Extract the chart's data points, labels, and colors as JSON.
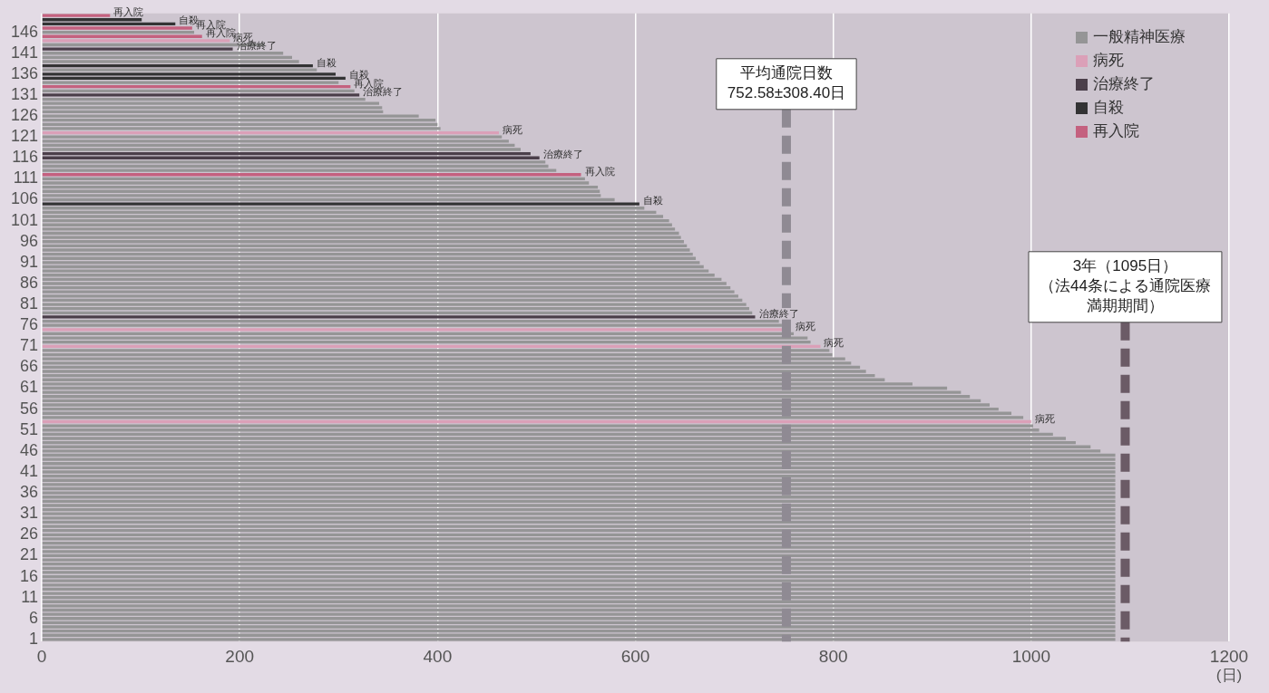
{
  "chart_data": {
    "type": "bar",
    "orientation": "horizontal",
    "stacked": true,
    "xlabel": "(日)",
    "categories": [
      null,
      null,
      null,
      null,
      "146",
      null,
      null,
      null,
      null,
      "141",
      null,
      null,
      null,
      null,
      "136",
      null,
      null,
      null,
      null,
      "131",
      null,
      null,
      null,
      null,
      "126",
      null,
      null,
      null,
      null,
      "121",
      null,
      null,
      null,
      null,
      "116",
      null,
      null,
      null,
      null,
      "111",
      null,
      null,
      null,
      null,
      "106",
      null,
      null,
      null,
      null,
      "101",
      null,
      null,
      null,
      null,
      "96",
      null,
      null,
      null,
      null,
      "91",
      null,
      null,
      null,
      null,
      "86",
      null,
      null,
      null,
      null,
      "81",
      null,
      null,
      null,
      null,
      "76",
      null,
      null,
      null,
      null,
      "71",
      null,
      null,
      null,
      null,
      "66",
      null,
      null,
      null,
      null,
      "61",
      null,
      null,
      null,
      null,
      "56",
      null,
      null,
      null,
      null,
      "51",
      null,
      null,
      null,
      null,
      "46",
      null,
      null,
      null,
      null,
      "41",
      null,
      null,
      null,
      null,
      "36",
      null,
      null,
      null,
      null,
      "31",
      null,
      null,
      null,
      null,
      "26",
      null,
      null,
      null,
      null,
      "21",
      null,
      null,
      null,
      null,
      "16",
      null,
      null,
      null,
      null,
      "11",
      null,
      null,
      null,
      null,
      "6",
      null,
      null,
      null,
      null,
      "1"
    ],
    "series": [
      {
        "name": "一般精神医療",
        "color": "#959596",
        "values": [
          null,
          null,
          null,
          null,
          154,
          null,
          null,
          225,
          null,
          244,
          253,
          260,
          null,
          278,
          null,
          null,
          300,
          null,
          316,
          null,
          327,
          341,
          344,
          345,
          381,
          398,
          400,
          403,
          null,
          465,
          472,
          478,
          484,
          null,
          null,
          509,
          512,
          520,
          null,
          549,
          553,
          562,
          564,
          565,
          579,
          null,
          609,
          621,
          628,
          634,
          637,
          640,
          644,
          646,
          649,
          652,
          655,
          658,
          661,
          665,
          669,
          674,
          680,
          687,
          692,
          696,
          700,
          704,
          708,
          712,
          715,
          718,
          null,
          745,
          748,
          null,
          760,
          774,
          777,
          null,
          796,
          799,
          812,
          818,
          827,
          833,
          842,
          852,
          880,
          915,
          929,
          938,
          949,
          958,
          967,
          980,
          992,
          null,
          1002,
          1008,
          1022,
          1035,
          1045,
          1060,
          1070,
          1085,
          1085,
          1085,
          1085,
          1085,
          1085,
          1085,
          1085,
          1085,
          1085,
          1085,
          1085,
          1085,
          1085,
          1085,
          1085,
          1085,
          1085,
          1085,
          1085,
          1085,
          1085,
          1085,
          1085,
          1085,
          1085,
          1085,
          1085,
          1085,
          1085,
          1085,
          1085,
          1085,
          1085,
          1085,
          1085,
          1085,
          1085,
          1085,
          1085,
          1085,
          1085,
          1085,
          1085,
          1085
        ]
      },
      {
        "name": "病死",
        "color": "#dba0b8",
        "values": [
          null,
          null,
          null,
          null,
          null,
          null,
          190,
          null,
          null,
          null,
          null,
          null,
          null,
          null,
          null,
          null,
          null,
          null,
          null,
          null,
          null,
          null,
          null,
          null,
          null,
          null,
          null,
          null,
          462,
          null,
          null,
          null,
          null,
          null,
          null,
          null,
          null,
          null,
          null,
          null,
          null,
          null,
          null,
          null,
          null,
          null,
          null,
          null,
          null,
          null,
          null,
          null,
          null,
          null,
          null,
          null,
          null,
          null,
          null,
          null,
          null,
          null,
          null,
          null,
          null,
          null,
          null,
          null,
          null,
          null,
          null,
          null,
          null,
          null,
          null,
          750,
          null,
          null,
          null,
          787,
          null,
          null,
          null,
          null,
          null,
          null,
          null,
          null,
          null,
          null,
          null,
          null,
          null,
          null,
          null,
          null,
          null,
          1000,
          null,
          null,
          null,
          null,
          null,
          null,
          null,
          null,
          null,
          null,
          null,
          null,
          null,
          null,
          null,
          null,
          null,
          null,
          null,
          null,
          null,
          null,
          null,
          null,
          null,
          null,
          null,
          null,
          null,
          null,
          null,
          null,
          null,
          null,
          null,
          null,
          null,
          null,
          null,
          null,
          null,
          null,
          null,
          null,
          null,
          null,
          null,
          null,
          null,
          null,
          null,
          null
        ],
        "value_labels": [
          null,
          null,
          null,
          null,
          null,
          null,
          "病死",
          null,
          null,
          null,
          null,
          null,
          null,
          null,
          null,
          null,
          null,
          null,
          null,
          null,
          null,
          null,
          null,
          null,
          null,
          null,
          null,
          null,
          "病死",
          null,
          null,
          null,
          null,
          null,
          null,
          null,
          null,
          null,
          null,
          null,
          null,
          null,
          null,
          null,
          null,
          null,
          null,
          null,
          null,
          null,
          null,
          null,
          null,
          null,
          null,
          null,
          null,
          null,
          null,
          null,
          null,
          null,
          null,
          null,
          null,
          null,
          null,
          null,
          null,
          null,
          null,
          null,
          null,
          null,
          null,
          "病死",
          null,
          null,
          null,
          "病死",
          null,
          null,
          null,
          null,
          null,
          null,
          null,
          null,
          null,
          null,
          null,
          null,
          null,
          null,
          null,
          null,
          null,
          "病死",
          null,
          null,
          null,
          null,
          null,
          null,
          null,
          null,
          null,
          null,
          null,
          null,
          null,
          null,
          null,
          null,
          null,
          null,
          null,
          null,
          null,
          null,
          null,
          null,
          null,
          null,
          null,
          null,
          null,
          null,
          null,
          null,
          null,
          null,
          null,
          null,
          null,
          null,
          null,
          null,
          null,
          null,
          null,
          null,
          null,
          null,
          null,
          null,
          null,
          null,
          null,
          null
        ]
      },
      {
        "name": "治療終了",
        "color": "#4b3f4a",
        "values": [
          null,
          null,
          null,
          null,
          null,
          null,
          null,
          null,
          193,
          null,
          null,
          null,
          null,
          null,
          null,
          null,
          null,
          null,
          null,
          321,
          null,
          null,
          null,
          null,
          null,
          null,
          null,
          null,
          null,
          null,
          null,
          null,
          null,
          494,
          503,
          null,
          null,
          null,
          null,
          null,
          null,
          null,
          null,
          null,
          null,
          null,
          null,
          null,
          null,
          null,
          null,
          null,
          null,
          null,
          null,
          null,
          null,
          null,
          null,
          null,
          null,
          null,
          null,
          null,
          null,
          null,
          null,
          null,
          null,
          null,
          null,
          null,
          721,
          null,
          null,
          null,
          null,
          null,
          null,
          null,
          null,
          null,
          null,
          null,
          null,
          null,
          null,
          null,
          null,
          null,
          null,
          null,
          null,
          null,
          null,
          null,
          null,
          null,
          null,
          null,
          null,
          null,
          null,
          null,
          null,
          null,
          null,
          null,
          null,
          null,
          null,
          null,
          null,
          null,
          null,
          null,
          null,
          null,
          null,
          null,
          null,
          null,
          null,
          null,
          null,
          null,
          null,
          null,
          null,
          null,
          null,
          null,
          null,
          null,
          null,
          null,
          null,
          null,
          null,
          null,
          null,
          null,
          null,
          null,
          null,
          null,
          null,
          null,
          null,
          null
        ],
        "value_labels": [
          null,
          null,
          null,
          null,
          null,
          null,
          null,
          null,
          "治療終了",
          null,
          null,
          null,
          null,
          null,
          null,
          null,
          null,
          null,
          null,
          "治療終了",
          null,
          null,
          null,
          null,
          null,
          null,
          null,
          null,
          null,
          null,
          null,
          null,
          null,
          null,
          "治療終了",
          null,
          null,
          null,
          null,
          null,
          null,
          null,
          null,
          null,
          null,
          null,
          null,
          null,
          null,
          null,
          null,
          null,
          null,
          null,
          null,
          null,
          null,
          null,
          null,
          null,
          null,
          null,
          null,
          null,
          null,
          null,
          null,
          null,
          null,
          null,
          null,
          null,
          "治療終了",
          null,
          null,
          null,
          null,
          null,
          null,
          null,
          null,
          null,
          null,
          null,
          null,
          null,
          null,
          null,
          null,
          null,
          null,
          null,
          null,
          null,
          null,
          null,
          null,
          null,
          null,
          null,
          null,
          null,
          null,
          null,
          null,
          null,
          null,
          null,
          null,
          null,
          null,
          null,
          null,
          null,
          null,
          null,
          null,
          null,
          null,
          null,
          null,
          null,
          null,
          null,
          null,
          null,
          null,
          null,
          null,
          null,
          null,
          null,
          null,
          null,
          null,
          null,
          null,
          null,
          null,
          null,
          null,
          null,
          null,
          null,
          null,
          null,
          null,
          null,
          null,
          null
        ]
      },
      {
        "name": "自殺",
        "color": "#333334",
        "values": [
          null,
          101,
          135,
          null,
          null,
          null,
          null,
          null,
          null,
          null,
          null,
          null,
          274,
          null,
          297,
          307,
          null,
          null,
          null,
          null,
          null,
          null,
          null,
          null,
          null,
          null,
          null,
          null,
          null,
          null,
          null,
          null,
          null,
          null,
          null,
          null,
          null,
          null,
          null,
          null,
          null,
          null,
          null,
          null,
          null,
          604,
          null,
          null,
          null,
          null,
          null,
          null,
          null,
          null,
          null,
          null,
          null,
          null,
          null,
          null,
          null,
          null,
          null,
          null,
          null,
          null,
          null,
          null,
          null,
          null,
          null,
          null,
          null,
          null,
          null,
          null,
          null,
          null,
          null,
          null,
          null,
          null,
          null,
          null,
          null,
          null,
          null,
          null,
          null,
          null,
          null,
          null,
          null,
          null,
          null,
          null,
          null,
          null,
          null,
          null,
          null,
          null,
          null,
          null,
          null,
          null,
          null,
          null,
          null,
          null,
          null,
          null,
          null,
          null,
          null,
          null,
          null,
          null,
          null,
          null,
          null,
          null,
          null,
          null,
          null,
          null,
          null,
          null,
          null,
          null,
          null,
          null,
          null,
          null,
          null,
          null,
          null,
          null,
          null,
          null,
          null,
          null,
          null,
          null,
          null,
          null,
          null,
          null,
          null,
          null
        ],
        "value_labels": [
          null,
          null,
          "自殺",
          null,
          null,
          null,
          null,
          null,
          null,
          null,
          null,
          null,
          "自殺",
          null,
          null,
          "自殺",
          null,
          null,
          null,
          null,
          null,
          null,
          null,
          null,
          null,
          null,
          null,
          null,
          null,
          null,
          null,
          null,
          null,
          null,
          null,
          null,
          null,
          null,
          null,
          null,
          null,
          null,
          null,
          null,
          null,
          "自殺",
          null,
          null,
          null,
          null,
          null,
          null,
          null,
          null,
          null,
          null,
          null,
          null,
          null,
          null,
          null,
          null,
          null,
          null,
          null,
          null,
          null,
          null,
          null,
          null,
          null,
          null,
          null,
          null,
          null,
          null,
          null,
          null,
          null,
          null,
          null,
          null,
          null,
          null,
          null,
          null,
          null,
          null,
          null,
          null,
          null,
          null,
          null,
          null,
          null,
          null,
          null,
          null,
          null,
          null,
          null,
          null,
          null,
          null,
          null,
          null,
          null,
          null,
          null,
          null,
          null,
          null,
          null,
          null,
          null,
          null,
          null,
          null,
          null,
          null,
          null,
          null,
          null,
          null,
          null,
          null,
          null,
          null,
          null,
          null,
          null,
          null,
          null,
          null,
          null,
          null,
          null,
          null,
          null,
          null,
          null,
          null,
          null,
          null,
          null,
          null,
          null,
          null,
          null,
          null
        ]
      },
      {
        "name": "再入院",
        "color": "#c4617f",
        "values": [
          69,
          null,
          null,
          152,
          null,
          162,
          null,
          null,
          null,
          null,
          null,
          null,
          null,
          null,
          null,
          null,
          null,
          312,
          null,
          null,
          null,
          null,
          null,
          null,
          null,
          null,
          null,
          null,
          null,
          null,
          null,
          null,
          null,
          null,
          null,
          null,
          null,
          null,
          545,
          null,
          null,
          null,
          null,
          null,
          null,
          null,
          null,
          null,
          null,
          null,
          null,
          null,
          null,
          null,
          null,
          null,
          null,
          null,
          null,
          null,
          null,
          null,
          null,
          null,
          null,
          null,
          null,
          null,
          null,
          null,
          null,
          null,
          null,
          null,
          null,
          null,
          null,
          null,
          null,
          null,
          null,
          null,
          null,
          null,
          null,
          null,
          null,
          null,
          null,
          null,
          null,
          null,
          null,
          null,
          null,
          null,
          null,
          null,
          null,
          null,
          null,
          null,
          null,
          null,
          null,
          null,
          null,
          null,
          null,
          null,
          null,
          null,
          null,
          null,
          null,
          null,
          null,
          null,
          null,
          null,
          null,
          null,
          null,
          null,
          null,
          null,
          null,
          null,
          null,
          null,
          null,
          null,
          null,
          null,
          null,
          null,
          null,
          null,
          null,
          null,
          null,
          null,
          null,
          null,
          null,
          null,
          null,
          null,
          null,
          null
        ],
        "value_labels": [
          "再入院",
          null,
          null,
          "再入院",
          null,
          "再入院",
          null,
          null,
          null,
          null,
          null,
          null,
          null,
          null,
          null,
          null,
          null,
          "再入院",
          null,
          null,
          null,
          null,
          null,
          null,
          null,
          null,
          null,
          null,
          null,
          null,
          null,
          null,
          null,
          null,
          null,
          null,
          null,
          null,
          "再入院",
          null,
          null,
          null,
          null,
          null,
          null,
          null,
          null,
          null,
          null,
          null,
          null,
          null,
          null,
          null,
          null,
          null,
          null,
          null,
          null,
          null,
          null,
          null,
          null,
          null,
          null,
          null,
          null,
          null,
          null,
          null,
          null,
          null,
          null,
          null,
          null,
          null,
          null,
          null,
          null,
          null,
          null,
          null,
          null,
          null,
          null,
          null,
          null,
          null,
          null,
          null,
          null,
          null,
          null,
          null,
          null,
          null,
          null,
          null,
          null,
          null,
          null,
          null,
          null,
          null,
          null,
          null,
          null,
          null,
          null,
          null,
          null,
          null,
          null,
          null,
          null,
          null,
          null,
          null,
          null,
          null,
          null,
          null,
          null,
          null,
          null,
          null,
          null,
          null,
          null,
          null,
          null,
          null,
          null,
          null,
          null,
          null,
          null,
          null,
          null,
          null,
          null,
          null,
          null,
          null,
          null,
          null,
          null,
          null,
          null,
          null
        ]
      }
    ],
    "xlim": [
      0,
      1200
    ],
    "xticks": [
      0,
      200,
      400,
      600,
      800,
      1000,
      1200
    ],
    "ref_lines": [
      {
        "axis": "x",
        "value": 752.58,
        "label": "平均通院日数\n752.58±308.40日",
        "color": "#8f8a93",
        "line_style": "dashed"
      },
      {
        "axis": "x",
        "value": 1095,
        "label": "3年（1095日）（法44条による通院医療満期期間）",
        "color": "#6b5b66",
        "line_style": "dashed"
      }
    ],
    "grid": "x",
    "legend": "top right"
  }
}
